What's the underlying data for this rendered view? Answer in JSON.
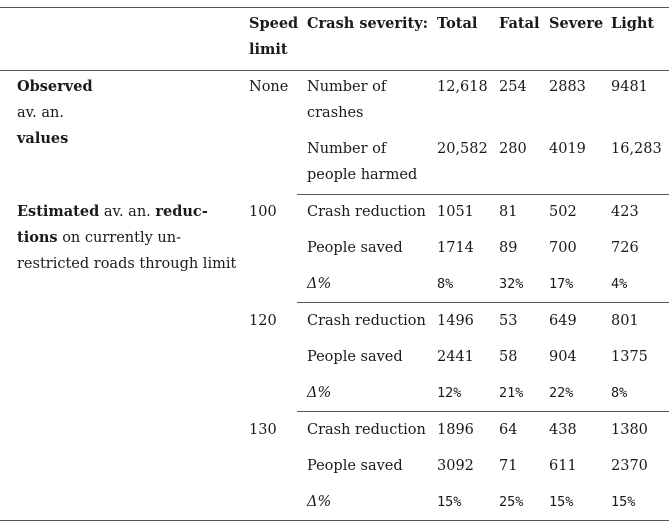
{
  "header": {
    "speed_limit_line1": "Speed",
    "speed_limit_line2": "limit",
    "crash_severity": "Crash severity:",
    "total": "Total",
    "fatal": "Fatal",
    "severe": "Severe",
    "light": "Light"
  },
  "observed": {
    "label_line1": "Observed",
    "label_line2": "av. an.",
    "label_line3": "values",
    "speed": "None",
    "rows": [
      {
        "label_line1": "Number of",
        "label_line2": "crashes",
        "total": "12,618",
        "fatal": "254",
        "severe": "2883",
        "light": "9481"
      },
      {
        "label_line1": "Number of",
        "label_line2": "people harmed",
        "total": "20,582",
        "fatal": "280",
        "severe": "4019",
        "light": "16,283"
      }
    ]
  },
  "estimated": {
    "label": {
      "l1_bold": "Estimated",
      "l1_a": " av. an. ",
      "l1_bold2": "reduc-",
      "l2_bold": "tions",
      "l2_a": " on currently un-",
      "l3": "restricted roads through limit"
    },
    "groups": [
      {
        "speed": "100",
        "rows": [
          {
            "label": "Crash reduction",
            "total": "1051",
            "fatal": "81",
            "severe": "502",
            "light": "423"
          },
          {
            "label": "People saved",
            "total": "1714",
            "fatal": "89",
            "severe": "700",
            "light": "726"
          },
          {
            "label": "Δ%",
            "total": "8%",
            "fatal": "32%",
            "severe": "17%",
            "light": "4%"
          }
        ]
      },
      {
        "speed": "120",
        "rows": [
          {
            "label": "Crash reduction",
            "total": "1496",
            "fatal": "53",
            "severe": "649",
            "light": "801"
          },
          {
            "label": "People saved",
            "total": "2441",
            "fatal": "58",
            "severe": "904",
            "light": "1375"
          },
          {
            "label": "Δ%",
            "total": "12%",
            "fatal": "21%",
            "severe": "22%",
            "light": "8%"
          }
        ]
      },
      {
        "speed": "130",
        "rows": [
          {
            "label": "Crash reduction",
            "total": "1896",
            "fatal": "64",
            "severe": "438",
            "light": "1380"
          },
          {
            "label": "People saved",
            "total": "3092",
            "fatal": "71",
            "severe": "611",
            "light": "2370"
          },
          {
            "label": "Δ%",
            "total": "15%",
            "fatal": "25%",
            "severe": "15%",
            "light": "15%"
          }
        ]
      }
    ]
  }
}
